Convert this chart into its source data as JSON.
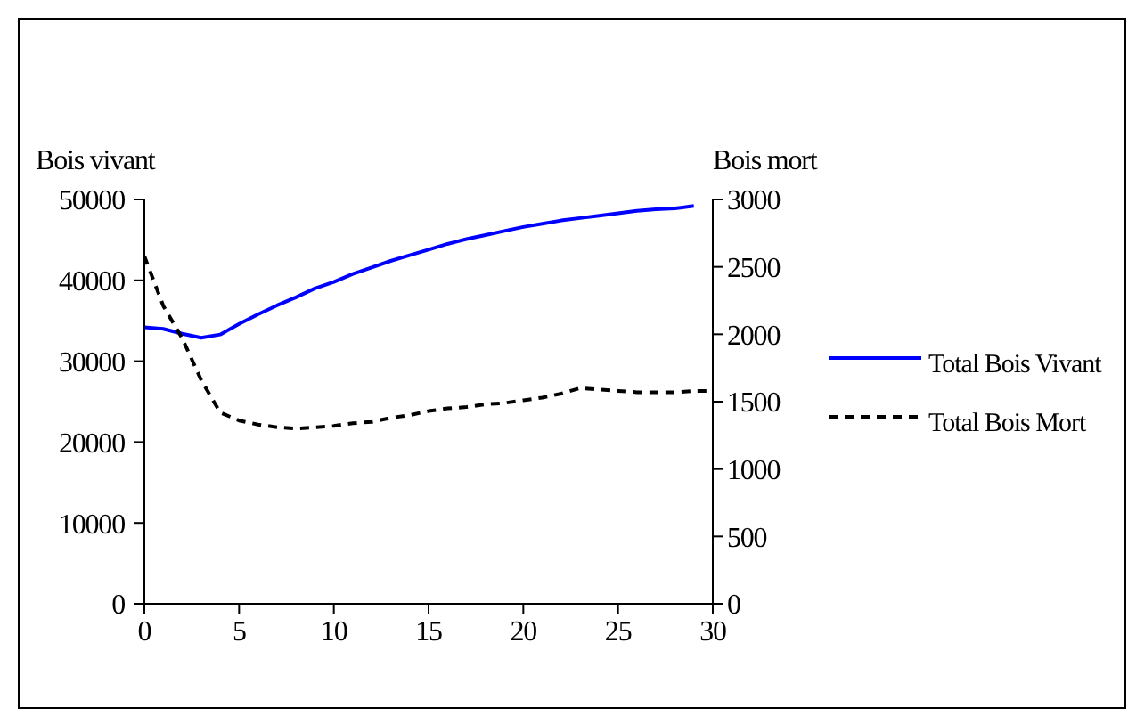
{
  "chart_data": {
    "type": "line",
    "ylabel": "Bois vivant",
    "y2label": "Bois mort",
    "xlim": [
      0,
      30
    ],
    "xticks": [
      0,
      5,
      10,
      15,
      20,
      25,
      30
    ],
    "ylim": [
      0,
      50000
    ],
    "yticks": [
      0,
      10000,
      20000,
      30000,
      40000,
      50000
    ],
    "y2lim": [
      0,
      3000
    ],
    "y2ticks": [
      0,
      500,
      1000,
      1500,
      2000,
      2500,
      3000
    ],
    "legend": "right",
    "marker": "none",
    "series": [
      {
        "name": "Total Bois Vivant",
        "color": "#0000ff",
        "line_style": "solid",
        "x": [
          0,
          1,
          2,
          3,
          4,
          5,
          6,
          7,
          8,
          9,
          10,
          11,
          12,
          13,
          14,
          15,
          16,
          17,
          18,
          19,
          20,
          21,
          22,
          23,
          24,
          25,
          26,
          27,
          28,
          29
        ],
        "values": [
          34200,
          34000,
          33400,
          32900,
          33300,
          34600,
          35800,
          36900,
          37900,
          39000,
          39800,
          40800,
          41600,
          42400,
          43100,
          43800,
          44500,
          45100,
          45600,
          46100,
          46600,
          47000,
          47400,
          47700,
          48000,
          48300,
          48600,
          48800,
          48900,
          49200
        ]
      },
      {
        "name": "Total Bois Mort",
        "color": "#000000",
        "line_style": "dashed",
        "axis": "y2",
        "x": [
          0,
          1,
          2,
          3,
          4,
          5,
          6,
          7,
          8,
          9,
          10,
          11,
          12,
          13,
          14,
          15,
          16,
          17,
          18,
          19,
          20,
          21,
          22,
          23,
          24,
          25,
          26,
          27,
          28,
          29,
          30
        ],
        "values": [
          2580,
          2210,
          1970,
          1660,
          1420,
          1360,
          1330,
          1310,
          1300,
          1310,
          1320,
          1340,
          1350,
          1380,
          1400,
          1430,
          1450,
          1460,
          1480,
          1490,
          1510,
          1530,
          1560,
          1600,
          1590,
          1580,
          1570,
          1570,
          1570,
          1580,
          1580
        ]
      }
    ]
  }
}
